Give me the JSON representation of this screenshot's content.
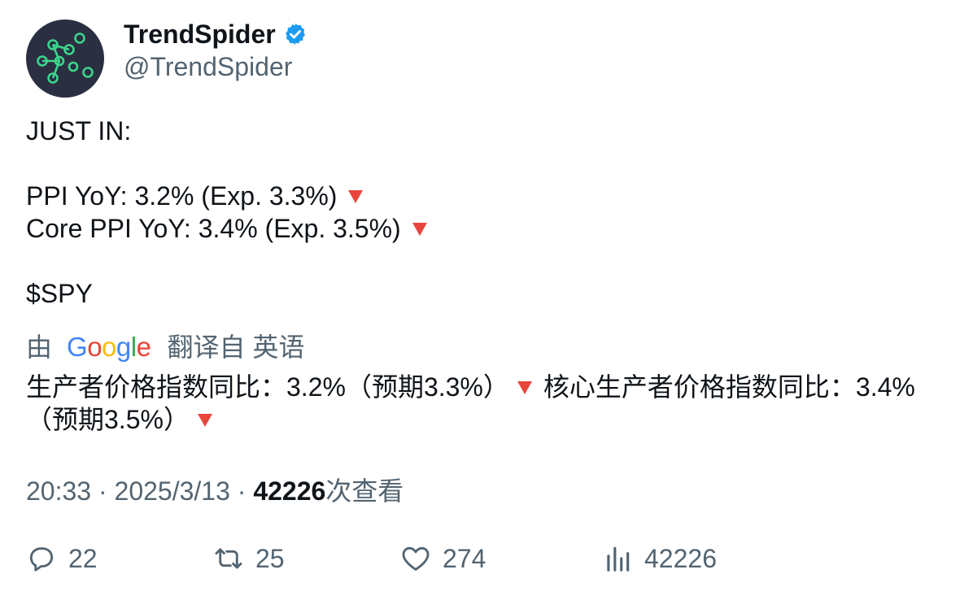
{
  "author": {
    "name": "TrendSpider",
    "handle": "@TrendSpider",
    "verified_icon": "verified-badge-icon",
    "avatar_icon": "trendspider-logo"
  },
  "tweet": {
    "line1": "JUST IN:",
    "line2": "PPI YoY: 3.2% (Exp. 3.3%)",
    "line3": "Core PPI YoY: 3.4% (Exp. 3.5%)",
    "line4": "$SPY",
    "arrow_icon": "red-down-triangle-icon"
  },
  "translation": {
    "prefix": "由",
    "google": "Google",
    "suffix": "翻译自 英语",
    "part1": "生产者价格指数同比：3.2%（预期3.3%）",
    "part2": "核心生产者价格指数同比：3.4%（预期3.5%）"
  },
  "meta": {
    "time": "20:33",
    "separator": " · ",
    "date": "2025/3/13",
    "views": "42226",
    "views_label": "次查看"
  },
  "actions": {
    "replies": "22",
    "retweets": "25",
    "likes": "274",
    "views": "42226"
  },
  "colors": {
    "text": "#0f1419",
    "secondary": "#536471",
    "verified": "#1d9bf0",
    "arrow": "#e8453c",
    "avatar_bg": "#2b2f42",
    "avatar_accent": "#3dd68c"
  }
}
